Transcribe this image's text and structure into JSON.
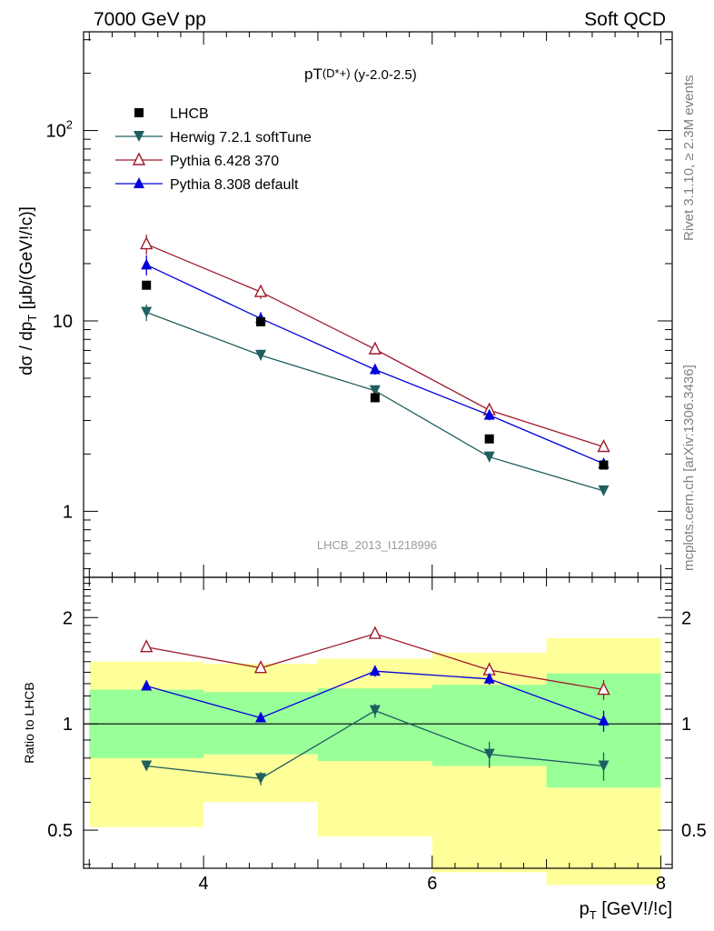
{
  "header": {
    "left": "7000 GeV pp",
    "right": "Soft QCD"
  },
  "plot_title": {
    "main": "pT",
    "sub": "(D*+)",
    "range": "(y-2.0-2.5)"
  },
  "side_text": {
    "rivet": "Rivet 3.1.10, ≥ 2.3M events",
    "source": "mcplots.cern.ch [arXiv:1306.3436]"
  },
  "analysis_label": "LHCB_2013_I1218996",
  "axes": {
    "y_main": "dσ / dp_T [μb/(GeV!/!c)]",
    "y_ratio": "Ratio to LHCB",
    "x": "p_T [GeV!/!c]"
  },
  "colors": {
    "data": "#000000",
    "herwig": "#1f5f5f",
    "pythia6": "#9e1b2b",
    "pythia8": "#0000dd",
    "band_inner": "#99ff99",
    "band_outer": "#ffff99"
  },
  "chart_data": [
    {
      "type": "scatter",
      "panel": "main",
      "x_scale": "linear",
      "y_scale": "log",
      "xlim": [
        2.95,
        8.1
      ],
      "ylim": [
        0.45,
        330
      ],
      "x_ticks": [
        4,
        6,
        8
      ],
      "y_tick_labels": [
        "1",
        "10",
        "10^2"
      ],
      "legend_position": "top-left",
      "series": [
        {
          "name": "LHCB",
          "marker": "filled-square",
          "x": [
            3.5,
            4.5,
            5.5,
            6.5,
            7.5
          ],
          "y": [
            15.4,
            9.9,
            3.95,
            2.4,
            1.75
          ]
        },
        {
          "name": "Herwig 7.2.1 softTune",
          "marker": "filled-down-triangle",
          "x": [
            3.5,
            4.5,
            5.5,
            6.5,
            7.5
          ],
          "y": [
            11.1,
            6.6,
            4.3,
            1.93,
            1.28
          ],
          "err": [
            0.25,
            0.15,
            0.15,
            0.15,
            0.1
          ]
        },
        {
          "name": "Pythia 6.428 370",
          "marker": "open-up-triangle",
          "x": [
            3.5,
            4.5,
            5.5,
            6.5,
            7.5
          ],
          "y": [
            25.3,
            14.2,
            7.1,
            3.4,
            2.18
          ],
          "err": [
            0.3,
            0.2,
            0.15,
            0.15,
            0.15
          ]
        },
        {
          "name": "Pythia 8.308 default",
          "marker": "filled-up-triangle",
          "x": [
            3.5,
            4.5,
            5.5,
            6.5,
            7.5
          ],
          "y": [
            19.7,
            10.3,
            5.55,
            3.2,
            1.78
          ],
          "err": [
            0.3,
            0.2,
            0.15,
            0.15,
            0.12
          ]
        }
      ]
    },
    {
      "type": "scatter",
      "panel": "ratio",
      "x_scale": "linear",
      "y_scale": "log",
      "xlim": [
        2.95,
        8.1
      ],
      "ylim": [
        0.39,
        2.6
      ],
      "x_ticks": [
        4,
        6,
        8
      ],
      "y_ticks": [
        0.5,
        1,
        2
      ],
      "bins": [
        [
          3,
          4
        ],
        [
          4,
          5
        ],
        [
          5,
          6
        ],
        [
          6,
          7
        ],
        [
          7,
          8
        ]
      ],
      "band_inner": {
        "lo": [
          0.8,
          0.82,
          0.785,
          0.76,
          0.66
        ],
        "hi": [
          1.25,
          1.23,
          1.26,
          1.29,
          1.39
        ]
      },
      "band_outer": {
        "lo": [
          0.51,
          0.6,
          0.48,
          0.38,
          0.35
        ],
        "hi": [
          1.5,
          1.48,
          1.53,
          1.59,
          1.75
        ]
      },
      "series": [
        {
          "name": "Herwig 7.2.1 softTune",
          "x": [
            3.5,
            4.5,
            5.5,
            6.5,
            7.5
          ],
          "y": [
            0.76,
            0.7,
            1.09,
            0.82,
            0.76
          ],
          "err": [
            0.02,
            0.03,
            0.05,
            0.07,
            0.07
          ]
        },
        {
          "name": "Pythia 6.428 370",
          "x": [
            3.5,
            4.5,
            5.5,
            6.5,
            7.5
          ],
          "y": [
            1.65,
            1.44,
            1.8,
            1.42,
            1.25
          ],
          "err": [
            0.02,
            0.03,
            0.05,
            0.07,
            0.08
          ]
        },
        {
          "name": "Pythia 8.308 default",
          "x": [
            3.5,
            4.5,
            5.5,
            6.5,
            7.5
          ],
          "y": [
            1.28,
            1.04,
            1.41,
            1.34,
            1.02
          ],
          "err": [
            0.02,
            0.03,
            0.05,
            0.05,
            0.07
          ]
        }
      ]
    }
  ]
}
